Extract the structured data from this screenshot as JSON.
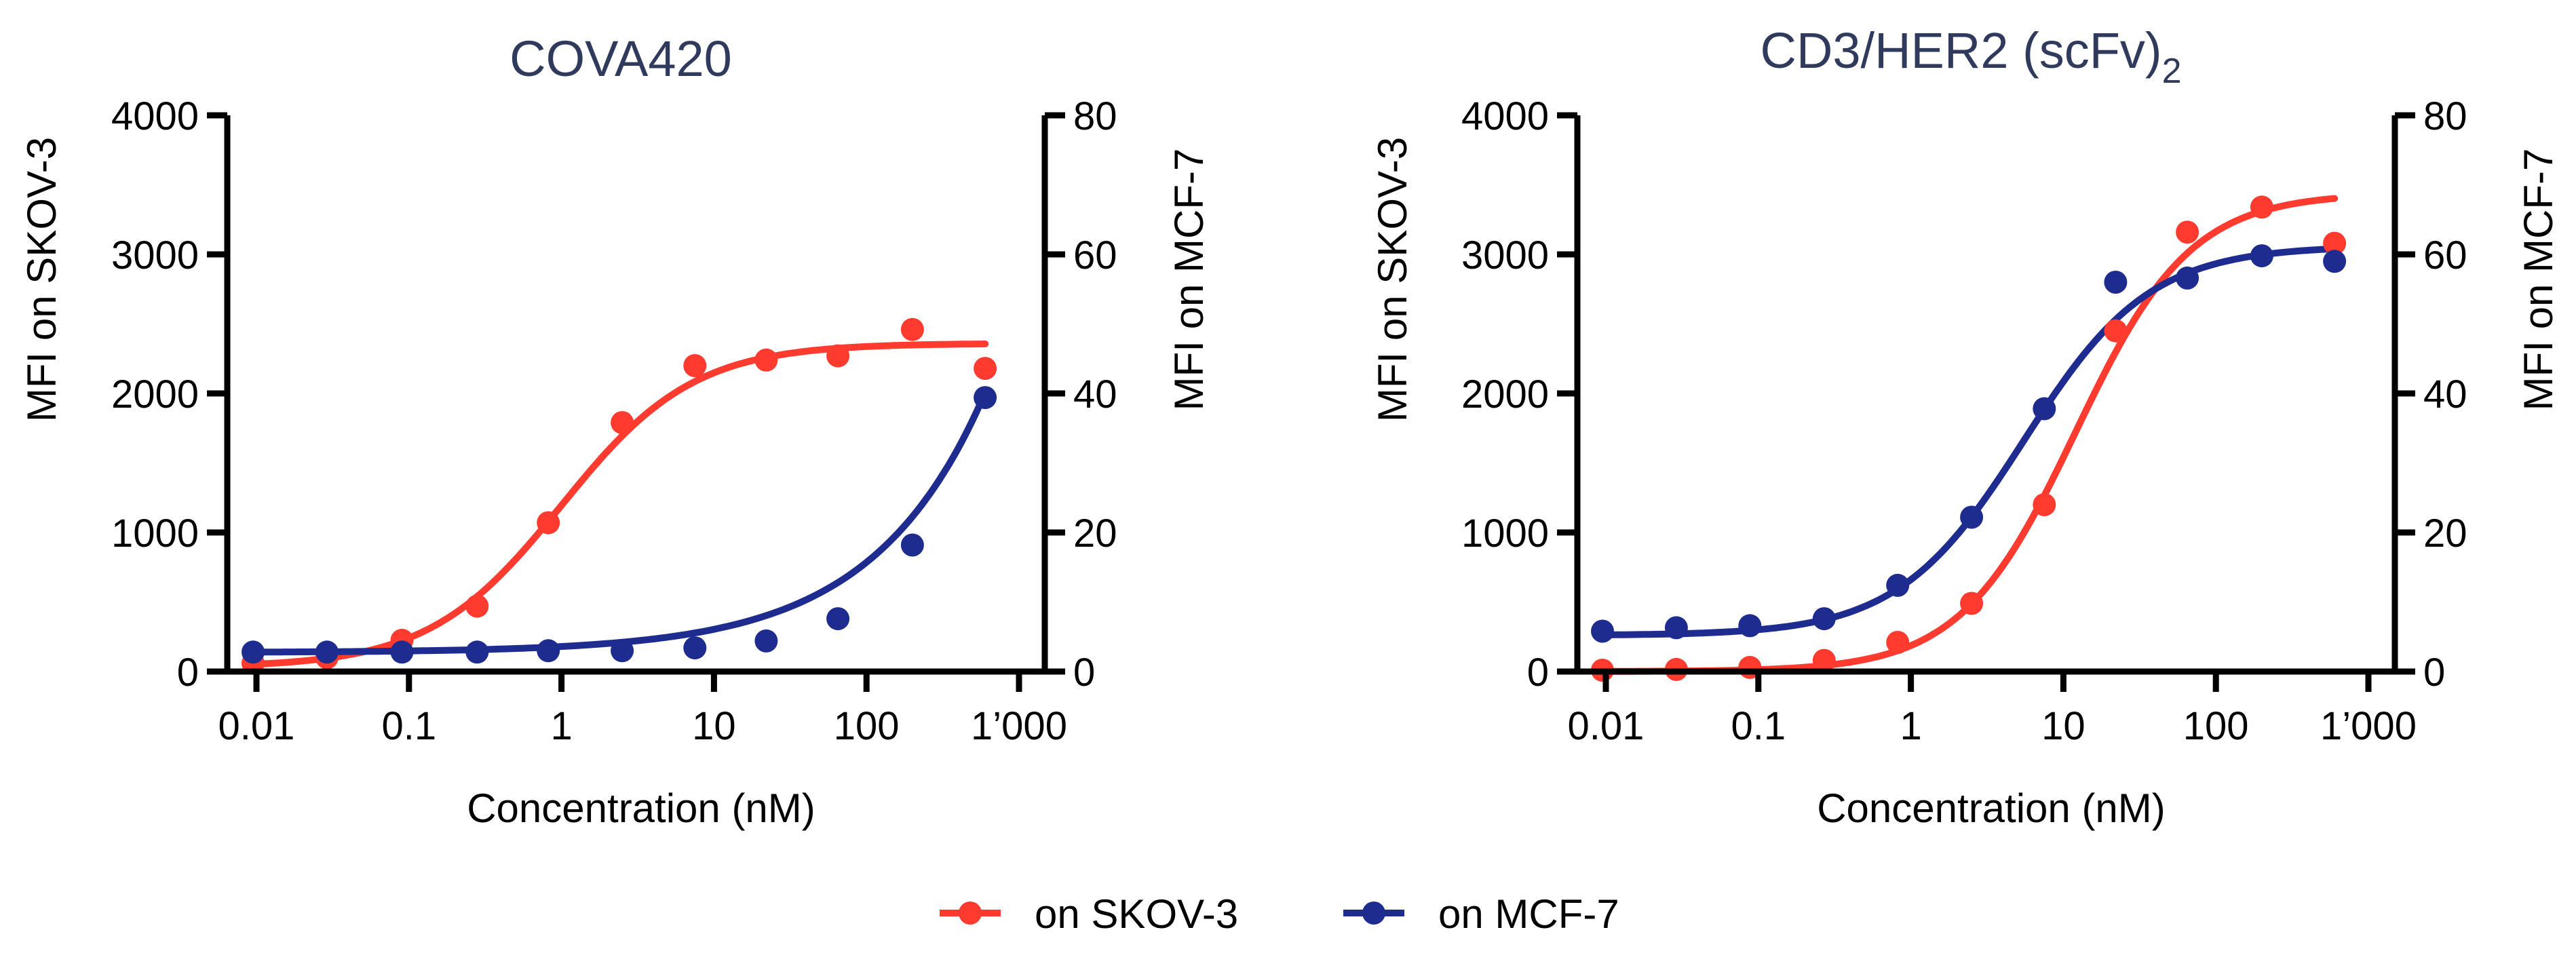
{
  "colors": {
    "skov3": "#ff3a2f",
    "mcf7": "#1f2c8f",
    "axis": "#000000",
    "title": "#2f3a5c",
    "background": "#ffffff"
  },
  "legend": {
    "placement": "bottom-center",
    "items": [
      {
        "label": "on SKOV-3",
        "series_key": "skov3"
      },
      {
        "label": "on MCF-7",
        "series_key": "mcf7"
      }
    ]
  },
  "chart_data": [
    {
      "type": "scatter",
      "title": "COVA420",
      "title_subscript": "",
      "xlabel": "Concentration (nM)",
      "ylabel": "MFI on SKOV-3",
      "y2label": "MFI on MCF-7",
      "xscale": "log",
      "xlim": [
        0.01,
        1000
      ],
      "ylim": [
        0,
        4000
      ],
      "y2lim": [
        0,
        80
      ],
      "xticks": [
        0.01,
        0.1,
        1,
        10,
        100,
        1000
      ],
      "xtick_labels": [
        "0.01",
        "0.1",
        "1",
        "10",
        "100",
        "1’000"
      ],
      "yticks": [
        0,
        1000,
        2000,
        3000,
        4000
      ],
      "ytick_labels": [
        "0",
        "1000",
        "2000",
        "3000",
        "4000"
      ],
      "y2ticks": [
        0,
        20,
        40,
        60,
        80
      ],
      "y2tick_labels": [
        "0",
        "20",
        "40",
        "60",
        "80"
      ],
      "grid": false,
      "series": [
        {
          "name": "on SKOV-3",
          "color_key": "skov3",
          "axis": "left",
          "points": [
            [
              0.0095,
              60
            ],
            [
              0.029,
              100
            ],
            [
              0.09,
              225
            ],
            [
              0.28,
              470
            ],
            [
              0.82,
              1070
            ],
            [
              2.5,
              1790
            ],
            [
              7.5,
              2200
            ],
            [
              22,
              2240
            ],
            [
              65,
              2270
            ],
            [
              200,
              2460
            ],
            [
              600,
              2180
            ]
          ],
          "fit": {
            "model": "4PL",
            "bottom": 30,
            "top": 2360,
            "ec50": 1.0,
            "hill": 1.0
          }
        },
        {
          "name": "on MCF-7",
          "color_key": "mcf7",
          "axis": "right",
          "points": [
            [
              0.0095,
              2.8
            ],
            [
              0.029,
              2.8
            ],
            [
              0.09,
              2.8
            ],
            [
              0.28,
              2.8
            ],
            [
              0.82,
              3.0
            ],
            [
              2.5,
              3.0
            ],
            [
              7.5,
              3.4
            ],
            [
              22,
              4.4
            ],
            [
              65,
              7.6
            ],
            [
              200,
              18.2
            ],
            [
              600,
              39.4
            ]
          ],
          "fit": {
            "model": "exp-curve",
            "base": 2.8,
            "peak": 40.2
          }
        }
      ]
    },
    {
      "type": "scatter",
      "title": "CD3/HER2 (scFv)",
      "title_subscript": "2",
      "xlabel": "Concentration (nM)",
      "ylabel": "MFI on SKOV-3",
      "y2label": "MFI on MCF-7",
      "xscale": "log",
      "xlim": [
        0.01,
        1000
      ],
      "ylim": [
        0,
        4000
      ],
      "y2lim": [
        0,
        80
      ],
      "xticks": [
        0.01,
        0.1,
        1,
        10,
        100,
        1000
      ],
      "xtick_labels": [
        "0.01",
        "0.1",
        "1",
        "10",
        "100",
        "1’000"
      ],
      "yticks": [
        0,
        1000,
        2000,
        3000,
        4000
      ],
      "ytick_labels": [
        "0",
        "1000",
        "2000",
        "3000",
        "4000"
      ],
      "y2ticks": [
        0,
        20,
        40,
        60,
        80
      ],
      "y2tick_labels": [
        "0",
        "20",
        "40",
        "60",
        "80"
      ],
      "grid": false,
      "series": [
        {
          "name": "on SKOV-3",
          "color_key": "skov3",
          "axis": "left",
          "points": [
            [
              0.0095,
              10
            ],
            [
              0.029,
              15
            ],
            [
              0.088,
              30
            ],
            [
              0.27,
              80
            ],
            [
              0.82,
              210
            ],
            [
              2.5,
              490
            ],
            [
              7.5,
              1200
            ],
            [
              22,
              2450
            ],
            [
              65,
              3160
            ],
            [
              200,
              3340
            ],
            [
              600,
              3080
            ]
          ],
          "fit": {
            "model": "4PL",
            "bottom": 0,
            "top": 3440,
            "ec50": 12,
            "hill": 1.15
          }
        },
        {
          "name": "on MCF-7",
          "color_key": "mcf7",
          "axis": "right",
          "points": [
            [
              0.0095,
              5.8
            ],
            [
              0.029,
              6.3
            ],
            [
              0.088,
              6.6
            ],
            [
              0.27,
              7.6
            ],
            [
              0.82,
              12.4
            ],
            [
              2.5,
              22.2
            ],
            [
              7.5,
              37.8
            ],
            [
              22,
              56.0
            ],
            [
              65,
              56.6
            ],
            [
              200,
              59.8
            ],
            [
              600,
              59.0
            ]
          ],
          "fit": {
            "model": "4PL",
            "bottom": 5.2,
            "top": 61.2,
            "ec50": 5.5,
            "hill": 1.05
          }
        }
      ]
    }
  ]
}
